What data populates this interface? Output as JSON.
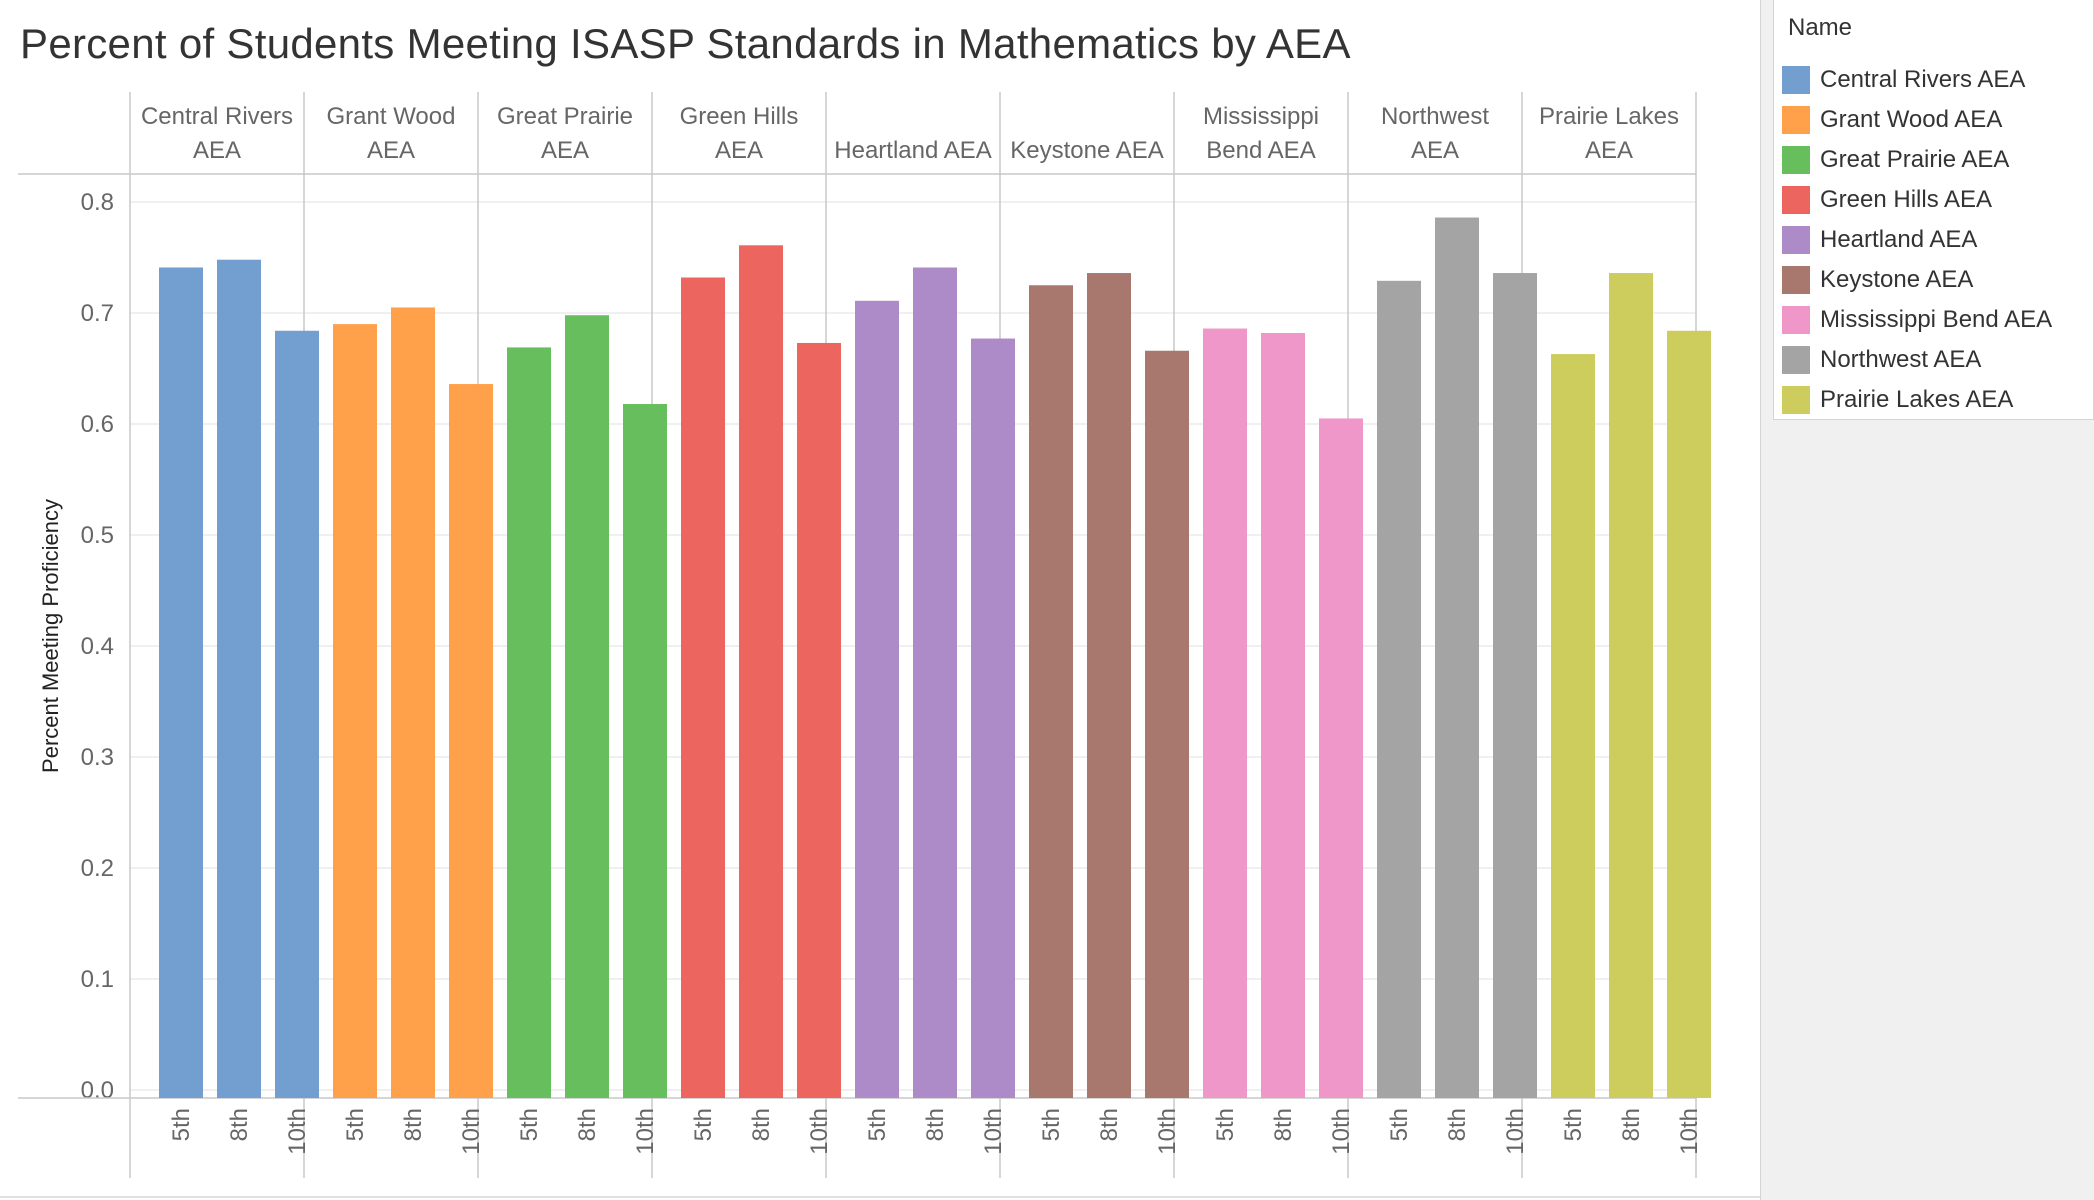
{
  "title": "Percent of Students Meeting ISASP Standards in Mathematics by AEA",
  "legend": {
    "title": "Name",
    "items": [
      {
        "label": "Central Rivers AEA",
        "color": "#729fcf"
      },
      {
        "label": "Grant Wood AEA",
        "color": "#ffa04a"
      },
      {
        "label": "Great Prairie AEA",
        "color": "#66bf5c"
      },
      {
        "label": "Green Hills AEA",
        "color": "#ec655f"
      },
      {
        "label": "Heartland AEA",
        "color": "#ad8bc9"
      },
      {
        "label": "Keystone AEA",
        "color": "#a8786e"
      },
      {
        "label": "Mississippi Bend AEA",
        "color": "#f097c9"
      },
      {
        "label": "Northwest AEA",
        "color": "#a4a4a4"
      },
      {
        "label": "Prairie Lakes AEA",
        "color": "#cdcd5d"
      }
    ]
  },
  "chart_data": {
    "type": "bar",
    "title": "Percent of Students Meeting ISASP Standards in Mathematics by AEA",
    "ylabel": "Percent Meeting Proficiency",
    "xlabel": "",
    "ylim": [
      0,
      0.8
    ],
    "yticks": [
      "0.0",
      "0.1",
      "0.2",
      "0.3",
      "0.4",
      "0.5",
      "0.6",
      "0.7",
      "0.8"
    ],
    "grid": true,
    "categories": [
      "5th",
      "8th",
      "10th"
    ],
    "groups": [
      {
        "name": "Central Rivers AEA",
        "header": [
          "Central Rivers",
          "AEA"
        ],
        "values": [
          0.741,
          0.748,
          0.684
        ]
      },
      {
        "name": "Grant Wood AEA",
        "header": [
          "Grant Wood",
          "AEA"
        ],
        "values": [
          0.69,
          0.705,
          0.636
        ]
      },
      {
        "name": "Great Prairie AEA",
        "header": [
          "Great Prairie",
          "AEA"
        ],
        "values": [
          0.669,
          0.698,
          0.618
        ]
      },
      {
        "name": "Green Hills AEA",
        "header": [
          "Green Hills",
          "AEA"
        ],
        "values": [
          0.732,
          0.761,
          0.673
        ]
      },
      {
        "name": "Heartland AEA",
        "header": [
          "Heartland AEA"
        ],
        "values": [
          0.711,
          0.741,
          0.677
        ]
      },
      {
        "name": "Keystone AEA",
        "header": [
          "Keystone AEA"
        ],
        "values": [
          0.725,
          0.736,
          0.666
        ]
      },
      {
        "name": "Mississippi Bend AEA",
        "header": [
          "Mississippi",
          "Bend AEA"
        ],
        "values": [
          0.686,
          0.682,
          0.605
        ]
      },
      {
        "name": "Northwest AEA",
        "header": [
          "Northwest",
          "AEA"
        ],
        "values": [
          0.729,
          0.786,
          0.736
        ]
      },
      {
        "name": "Prairie Lakes AEA",
        "header": [
          "Prairie Lakes",
          "AEA"
        ],
        "values": [
          0.663,
          0.736,
          0.684
        ]
      }
    ]
  }
}
